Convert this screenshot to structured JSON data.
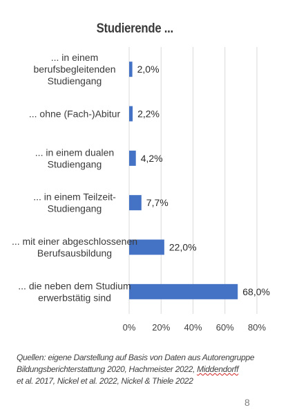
{
  "title": "Studierende ...",
  "chart_data": {
    "type": "bar",
    "orientation": "horizontal",
    "categories": [
      [
        "... in einem",
        "berufsbegleitenden",
        "Studiengang"
      ],
      [
        "... ohne (Fach-)Abitur"
      ],
      [
        "... in einem dualen",
        "Studiengang"
      ],
      [
        "... in einem Teilzeit-",
        "Studiengang"
      ],
      [
        "... mit einer abgeschlossenen",
        "Berufsausbildung"
      ],
      [
        "... die neben dem Studium",
        "erwerbstätig sind"
      ]
    ],
    "values": [
      2.0,
      2.2,
      4.2,
      7.7,
      22.0,
      68.0
    ],
    "value_labels": [
      "2,0%",
      "2,2%",
      "4,2%",
      "7,7%",
      "22,0%",
      "68,0%"
    ],
    "xlim": [
      0,
      80
    ],
    "x_ticks": [
      "0%",
      "20%",
      "40%",
      "60%",
      "80%"
    ],
    "grid": true,
    "bar_color": "#4472c4",
    "grid_color": "#d9d9d9"
  },
  "source": {
    "line1": "Quellen: eigene Darstellung auf Basis von Daten aus Autorengruppe",
    "line2_a": "Bildungsberichterstattung 2020,  Hachmeister 2022, ",
    "line2_b": "Middendorff",
    "line3": "et al. 2017, Nickel et al. 2022, Nickel & Thiele 2022"
  },
  "page_number": "8"
}
